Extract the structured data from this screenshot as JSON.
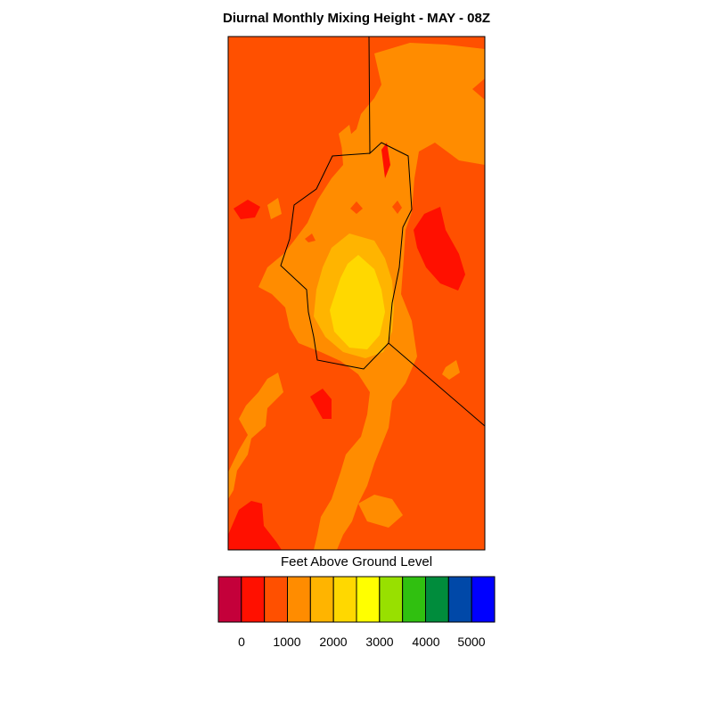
{
  "title": "Diurnal Monthly Mixing Height - MAY - 08Z",
  "legend": {
    "title": "Feet Above Ground Level",
    "colors": [
      "#c4003a",
      "#ff1000",
      "#ff5000",
      "#ff8c00",
      "#ffb400",
      "#ffd800",
      "#ffff00",
      "#98e000",
      "#30c010",
      "#008c3c",
      "#0048a8",
      "#0000ff"
    ],
    "tick_labels": [
      "0",
      "1000",
      "2000",
      "3000",
      "4000",
      "5000"
    ]
  },
  "map_colors": {
    "background": "#ff5000",
    "level_1": "#ff8c00",
    "level_2": "#ffb400",
    "level_3": "#ffd800",
    "low": "#ff1000",
    "boundary": "#000000"
  }
}
